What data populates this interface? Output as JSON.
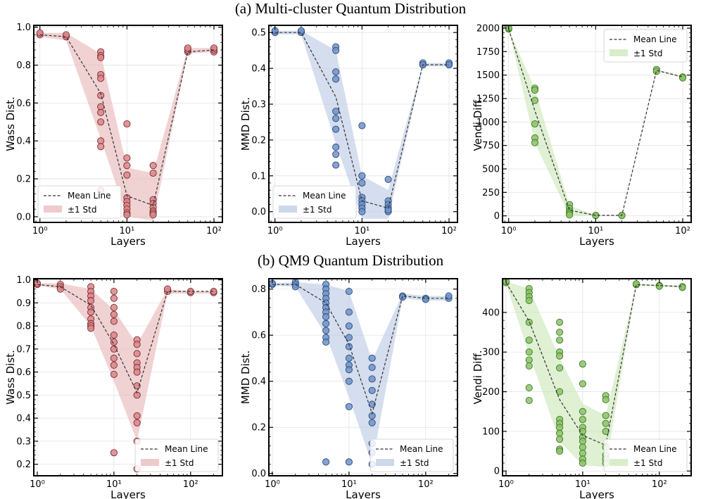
{
  "row_titles": {
    "a": "(a) Multi-cluster Quantum Distribution",
    "b": "(b) QM9 Quantum Distribution"
  },
  "legend": {
    "mean_label": "Mean Line",
    "std_label": "±1 Std"
  },
  "colors": {
    "red_fill": "#d9868a",
    "red_edge": "#7a2a2e",
    "red_band": "#e8b4b6",
    "blue_fill": "#6f93c8",
    "blue_edge": "#2b4a7a",
    "blue_band": "#b9c8e2",
    "green_fill": "#8cc26a",
    "green_edge": "#3f7a22",
    "green_band": "#c9e6b5"
  },
  "chart_data": [
    {
      "type": "scatter",
      "row": "a",
      "color": "red",
      "xscale": "log",
      "xlabel": "Layers",
      "ylabel": "Wass Dist.",
      "xlim": [
        0.85,
        125
      ],
      "ylim": [
        -0.03,
        1.01
      ],
      "yticks": [
        0.0,
        0.2,
        0.4,
        0.6,
        0.8,
        1.0
      ],
      "yticklabels": [
        "0.0",
        "0.2",
        "0.4",
        "0.6",
        "0.8",
        "1.0"
      ],
      "xticks": [
        1,
        10,
        100
      ],
      "xticklabels": [
        "10⁰",
        "10¹",
        "10²"
      ],
      "legend_position": "lower-left",
      "mean_line": {
        "x": [
          1,
          2,
          5,
          10,
          20,
          50,
          100
        ],
        "y": [
          0.96,
          0.95,
          0.65,
          0.11,
          0.06,
          0.87,
          0.88
        ]
      },
      "std_band": {
        "x": [
          1,
          2,
          5,
          10,
          20,
          50,
          100
        ],
        "upper": [
          0.97,
          0.97,
          0.86,
          0.26,
          0.23,
          0.89,
          0.89
        ],
        "lower": [
          0.95,
          0.93,
          0.41,
          0.0,
          -0.02,
          0.86,
          0.87
        ]
      },
      "points": {
        "x": [
          1,
          1,
          2,
          2,
          5,
          5,
          5,
          5,
          5,
          5,
          5,
          5,
          5,
          5,
          5,
          5,
          10,
          10,
          10,
          10,
          10,
          10,
          10,
          10,
          10,
          10,
          20,
          20,
          20,
          20,
          20,
          20,
          20,
          20,
          50,
          50,
          50,
          100,
          100,
          100
        ],
        "y": [
          0.96,
          0.97,
          0.95,
          0.96,
          0.87,
          0.85,
          0.84,
          0.75,
          0.73,
          0.64,
          0.58,
          0.55,
          0.5,
          0.4,
          0.37,
          0.14,
          0.49,
          0.31,
          0.27,
          0.22,
          0.1,
          0.08,
          0.06,
          0.04,
          0.02,
          0.01,
          0.27,
          0.23,
          0.09,
          0.07,
          0.05,
          0.03,
          0.02,
          0.01,
          0.87,
          0.88,
          0.89,
          0.87,
          0.88,
          0.89
        ]
      }
    },
    {
      "type": "scatter",
      "row": "a",
      "color": "blue",
      "xscale": "log",
      "xlabel": "Layers",
      "ylabel": "MMD Dist.",
      "xlim": [
        0.85,
        125
      ],
      "ylim": [
        -0.03,
        0.52
      ],
      "yticks": [
        0.0,
        0.1,
        0.2,
        0.3,
        0.4,
        0.5
      ],
      "yticklabels": [
        "0.0",
        "0.1",
        "0.2",
        "0.3",
        "0.4",
        "0.5"
      ],
      "xticks": [
        1,
        10,
        100
      ],
      "xticklabels": [
        "10⁰",
        "10¹",
        "10²"
      ],
      "legend_position": "lower-left",
      "mean_line": {
        "x": [
          1,
          2,
          5,
          10,
          20,
          50,
          100
        ],
        "y": [
          0.5,
          0.5,
          0.32,
          0.03,
          0.01,
          0.41,
          0.41
        ]
      },
      "std_band": {
        "x": [
          1,
          2,
          5,
          10,
          20,
          50,
          100
        ],
        "upper": [
          0.505,
          0.505,
          0.45,
          0.1,
          0.06,
          0.415,
          0.415
        ],
        "lower": [
          0.495,
          0.495,
          0.19,
          -0.02,
          -0.02,
          0.405,
          0.405
        ]
      },
      "points": {
        "x": [
          1,
          1,
          2,
          2,
          5,
          5,
          5,
          5,
          5,
          5,
          5,
          5,
          5,
          5,
          10,
          10,
          10,
          10,
          10,
          10,
          10,
          10,
          20,
          20,
          20,
          20,
          20,
          20,
          50,
          50,
          50,
          100,
          100,
          100
        ],
        "y": [
          0.5,
          0.505,
          0.5,
          0.505,
          0.46,
          0.45,
          0.39,
          0.37,
          0.28,
          0.26,
          0.23,
          0.18,
          0.16,
          0.13,
          0.24,
          0.1,
          0.08,
          0.04,
          0.03,
          0.02,
          0.01,
          0.0,
          0.09,
          0.03,
          0.02,
          0.01,
          0.0,
          0.005,
          0.41,
          0.415,
          0.41,
          0.41,
          0.415,
          0.41
        ]
      }
    },
    {
      "type": "scatter",
      "row": "a",
      "color": "green",
      "xscale": "log",
      "xlabel": "Layers",
      "ylabel": "Vendi Diff.",
      "xlim": [
        0.85,
        125
      ],
      "ylim": [
        -70,
        2030
      ],
      "yticks": [
        0,
        250,
        500,
        750,
        1000,
        1250,
        1500,
        1750,
        2000
      ],
      "yticklabels": [
        "0",
        "250",
        "500",
        "750",
        "1000",
        "1250",
        "1500",
        "1750",
        "2000"
      ],
      "xticks": [
        1,
        10,
        100
      ],
      "xticklabels": [
        "10⁰",
        "10¹",
        "10²"
      ],
      "legend_position": "top-right",
      "mean_line": {
        "x": [
          1,
          2,
          5,
          10,
          20,
          50,
          100
        ],
        "y": [
          1990,
          1120,
          60,
          5,
          5,
          1550,
          1480
        ]
      },
      "std_band": {
        "x": [
          1,
          2,
          5,
          10,
          20,
          50,
          100
        ],
        "upper": [
          1990,
          1350,
          110,
          8,
          8,
          1560,
          1490
        ],
        "lower": [
          1990,
          780,
          0,
          2,
          2,
          1540,
          1470
        ]
      },
      "points": {
        "x": [
          1,
          1,
          2,
          2,
          2,
          2,
          2,
          2,
          5,
          5,
          5,
          5,
          5,
          10,
          10,
          20,
          20,
          50,
          50,
          100,
          100
        ],
        "y": [
          1990,
          2000,
          1360,
          1340,
          1230,
          980,
          830,
          780,
          120,
          80,
          50,
          30,
          10,
          5,
          3,
          5,
          3,
          1560,
          1540,
          1480,
          1470
        ]
      }
    },
    {
      "type": "scatter",
      "row": "b",
      "color": "red",
      "xscale": "log",
      "xlabel": "Layers",
      "ylabel": "Wass Dist.",
      "xlim": [
        0.9,
        260
      ],
      "ylim": [
        0.15,
        1.005
      ],
      "yticks": [
        0.2,
        0.3,
        0.4,
        0.5,
        0.6,
        0.7,
        0.8,
        0.9,
        1.0
      ],
      "yticklabels": [
        "0.2",
        "0.3",
        "0.4",
        "0.5",
        "0.6",
        "0.7",
        "0.8",
        "0.9",
        "1.0"
      ],
      "xticks": [
        1,
        10,
        100
      ],
      "xticklabels": [
        "10⁰",
        "10¹",
        "10²"
      ],
      "legend_position": "lower-right",
      "mean_line": {
        "x": [
          1,
          2,
          5,
          10,
          20,
          50,
          100,
          200
        ],
        "y": [
          0.98,
          0.97,
          0.89,
          0.72,
          0.51,
          0.95,
          0.95,
          0.95
        ]
      },
      "std_band": {
        "x": [
          1,
          2,
          5,
          10,
          20,
          50,
          100,
          200
        ],
        "upper": [
          0.985,
          0.985,
          0.96,
          0.87,
          0.72,
          0.96,
          0.95,
          0.95
        ],
        "lower": [
          0.975,
          0.96,
          0.8,
          0.56,
          0.3,
          0.94,
          0.94,
          0.94
        ]
      },
      "points": {
        "x": [
          1,
          1,
          2,
          2,
          2,
          5,
          5,
          5,
          5,
          5,
          5,
          5,
          5,
          5,
          5,
          10,
          10,
          10,
          10,
          10,
          10,
          10,
          10,
          10,
          10,
          10,
          10,
          20,
          20,
          20,
          20,
          20,
          20,
          20,
          20,
          20,
          20,
          20,
          20,
          50,
          50,
          100,
          100,
          200,
          200
        ],
        "y": [
          0.98,
          0.985,
          0.98,
          0.97,
          0.96,
          0.97,
          0.95,
          0.93,
          0.91,
          0.88,
          0.86,
          0.83,
          0.81,
          0.8,
          0.79,
          0.95,
          0.92,
          0.88,
          0.85,
          0.82,
          0.76,
          0.73,
          0.7,
          0.66,
          0.63,
          0.59,
          0.25,
          0.74,
          0.72,
          0.68,
          0.64,
          0.62,
          0.6,
          0.54,
          0.5,
          0.41,
          0.38,
          0.3,
          0.18,
          0.95,
          0.96,
          0.945,
          0.95,
          0.945,
          0.95
        ]
      }
    },
    {
      "type": "scatter",
      "row": "b",
      "color": "blue",
      "xscale": "log",
      "xlabel": "Layers",
      "ylabel": "MMD Dist.",
      "xlim": [
        0.9,
        260
      ],
      "ylim": [
        -0.01,
        0.845
      ],
      "yticks": [
        0.0,
        0.2,
        0.4,
        0.6,
        0.8
      ],
      "yticklabels": [
        "0.0",
        "0.2",
        "0.4",
        "0.6",
        "0.8"
      ],
      "xticks": [
        1,
        10,
        100
      ],
      "xticklabels": [
        "10⁰",
        "10¹",
        "10²"
      ],
      "legend_position": "lower-right",
      "mean_line": {
        "x": [
          1,
          2,
          5,
          10,
          20,
          50,
          100,
          200
        ],
        "y": [
          0.82,
          0.82,
          0.74,
          0.56,
          0.26,
          0.77,
          0.76,
          0.76
        ]
      },
      "std_band": {
        "x": [
          1,
          2,
          5,
          10,
          20,
          50,
          100,
          200
        ],
        "upper": [
          0.825,
          0.83,
          0.82,
          0.79,
          0.49,
          0.78,
          0.77,
          0.77
        ],
        "lower": [
          0.815,
          0.81,
          0.6,
          0.33,
          0.04,
          0.76,
          0.75,
          0.75
        ]
      },
      "points": {
        "x": [
          1,
          1,
          2,
          2,
          2,
          5,
          5,
          5,
          5,
          5,
          5,
          5,
          5,
          5,
          5,
          5,
          5,
          5,
          10,
          10,
          10,
          10,
          10,
          10,
          10,
          10,
          10,
          10,
          10,
          20,
          20,
          20,
          20,
          20,
          20,
          20,
          20,
          20,
          20,
          50,
          50,
          100,
          100,
          200,
          200
        ],
        "y": [
          0.82,
          0.825,
          0.83,
          0.82,
          0.81,
          0.82,
          0.8,
          0.78,
          0.76,
          0.74,
          0.72,
          0.7,
          0.68,
          0.65,
          0.62,
          0.59,
          0.57,
          0.05,
          0.79,
          0.7,
          0.64,
          0.59,
          0.55,
          0.5,
          0.47,
          0.45,
          0.4,
          0.29,
          0.05,
          0.5,
          0.46,
          0.41,
          0.36,
          0.3,
          0.25,
          0.22,
          0.13,
          0.09,
          0.04,
          0.77,
          0.765,
          0.76,
          0.755,
          0.76,
          0.77
        ]
      }
    },
    {
      "type": "scatter",
      "row": "b",
      "color": "green",
      "xscale": "log",
      "xlabel": "Layers",
      "ylabel": "Vendi Diff.",
      "xlim": [
        0.9,
        260
      ],
      "ylim": [
        -12,
        485
      ],
      "yticks": [
        0,
        100,
        200,
        300,
        400
      ],
      "yticklabels": [
        "0",
        "100",
        "200",
        "300",
        "400"
      ],
      "xticks": [
        1,
        10,
        100
      ],
      "xticklabels": [
        "10⁰",
        "10¹",
        "10²"
      ],
      "legend_position": "lower-right",
      "mean_line": {
        "x": [
          1,
          2,
          5,
          10,
          20,
          50,
          100,
          200
        ],
        "y": [
          475,
          378,
          180,
          90,
          65,
          470,
          468,
          465
        ]
      },
      "std_band": {
        "x": [
          1,
          2,
          5,
          10,
          20,
          50,
          100,
          200
        ],
        "upper": [
          478,
          460,
          285,
          170,
          140,
          473,
          470,
          468
        ],
        "lower": [
          472,
          295,
          75,
          15,
          10,
          467,
          465,
          462
        ]
      },
      "points": {
        "x": [
          1,
          1,
          2,
          2,
          2,
          2,
          2,
          2,
          2,
          2,
          2,
          2,
          2,
          5,
          5,
          5,
          5,
          5,
          5,
          5,
          5,
          5,
          5,
          5,
          5,
          5,
          5,
          10,
          10,
          10,
          10,
          10,
          10,
          10,
          10,
          10,
          10,
          10,
          10,
          20,
          20,
          20,
          20,
          20,
          20,
          20,
          20,
          20,
          50,
          50,
          100,
          100,
          200,
          200
        ],
        "y": [
          475,
          478,
          460,
          450,
          440,
          430,
          375,
          330,
          300,
          280,
          265,
          210,
          178,
          375,
          350,
          330,
          300,
          290,
          260,
          200,
          130,
          120,
          110,
          95,
          80,
          55,
          50,
          270,
          220,
          150,
          130,
          110,
          100,
          85,
          75,
          60,
          45,
          30,
          20,
          190,
          180,
          140,
          120,
          100,
          60,
          40,
          30,
          20,
          470,
          472,
          468,
          466,
          465,
          463
        ]
      }
    }
  ]
}
